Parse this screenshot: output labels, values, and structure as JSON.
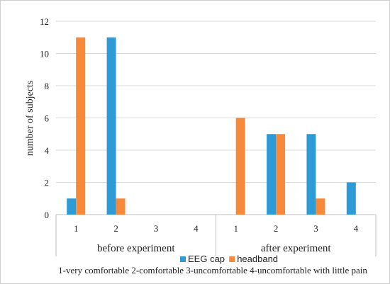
{
  "chart_data": {
    "type": "bar",
    "ylabel": "number of subjects",
    "ylim": [
      0,
      12
    ],
    "yticks": [
      0,
      2,
      4,
      6,
      8,
      10,
      12
    ],
    "grid": "horizontal",
    "groups": [
      {
        "label": "before experiment",
        "categories": [
          "1",
          "2",
          "3",
          "4"
        ]
      },
      {
        "label": "after experiment",
        "categories": [
          "1",
          "2",
          "3",
          "4"
        ]
      }
    ],
    "series": [
      {
        "name": "EEG cap",
        "color": "#2E9BD6",
        "values": [
          1,
          11,
          0,
          0,
          0,
          5,
          5,
          2
        ]
      },
      {
        "name": "headband",
        "color": "#F7893B",
        "values": [
          11,
          1,
          0,
          0,
          6,
          5,
          1,
          0
        ]
      }
    ],
    "legend_position": "bottom",
    "footnote": "1-very comfortable 2-comfortable 3-uncomfortable 4-uncomfortable with little pain"
  }
}
